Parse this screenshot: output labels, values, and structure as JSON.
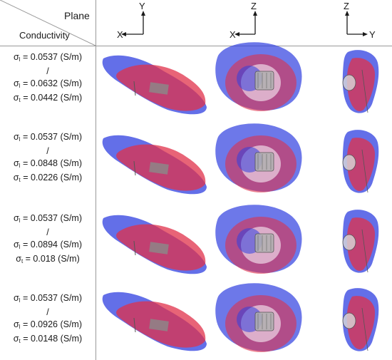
{
  "header": {
    "plane_label": "Plane",
    "conductivity_label": "Conductivity"
  },
  "axes": [
    {
      "horizontal": "X",
      "vertical": "Y",
      "horizontal_side": "left"
    },
    {
      "horizontal": "X",
      "vertical": "Z",
      "horizontal_side": "left"
    },
    {
      "horizontal": "Y",
      "vertical": "Z",
      "horizontal_side": "right"
    }
  ],
  "rows": [
    {
      "sigma_l": "σ",
      "l_sub": "l",
      "l_value": " = 0.0537 (S/m)",
      "sep": "/",
      "t1_sub": "l",
      "t1_value": " = 0.0632 (S/m)",
      "t2_sub": "t",
      "t2_value": " = 0.0442 (S/m)"
    },
    {
      "sigma_l": "σ",
      "l_sub": "l",
      "l_value": " = 0.0537 (S/m)",
      "sep": "/",
      "t1_sub": "l",
      "t1_value": " = 0.0848 (S/m)",
      "t2_sub": "t",
      "t2_value": " = 0.0226 (S/m)"
    },
    {
      "sigma_l": "σ",
      "l_sub": "l",
      "l_value": " = 0.0537 (S/m)",
      "sep": "/",
      "t1_sub": "l",
      "t1_value": " = 0.0894 (S/m)",
      "t2_sub": "t",
      "t2_value": " = 0.018 (S/m)"
    },
    {
      "sigma_l": "σ",
      "l_sub": "l",
      "l_value": " = 0.0537 (S/m)",
      "sep": "/",
      "t1_sub": "l",
      "t1_value": " = 0.0926 (S/m)",
      "t2_sub": "t",
      "t2_value": " = 0.0148 (S/m)"
    }
  ],
  "colors": {
    "blue_volume": "#2f3fe0",
    "red_volume": "#e0304a",
    "electrode": "#8a8a8a",
    "grid": "#9a9a9a"
  }
}
